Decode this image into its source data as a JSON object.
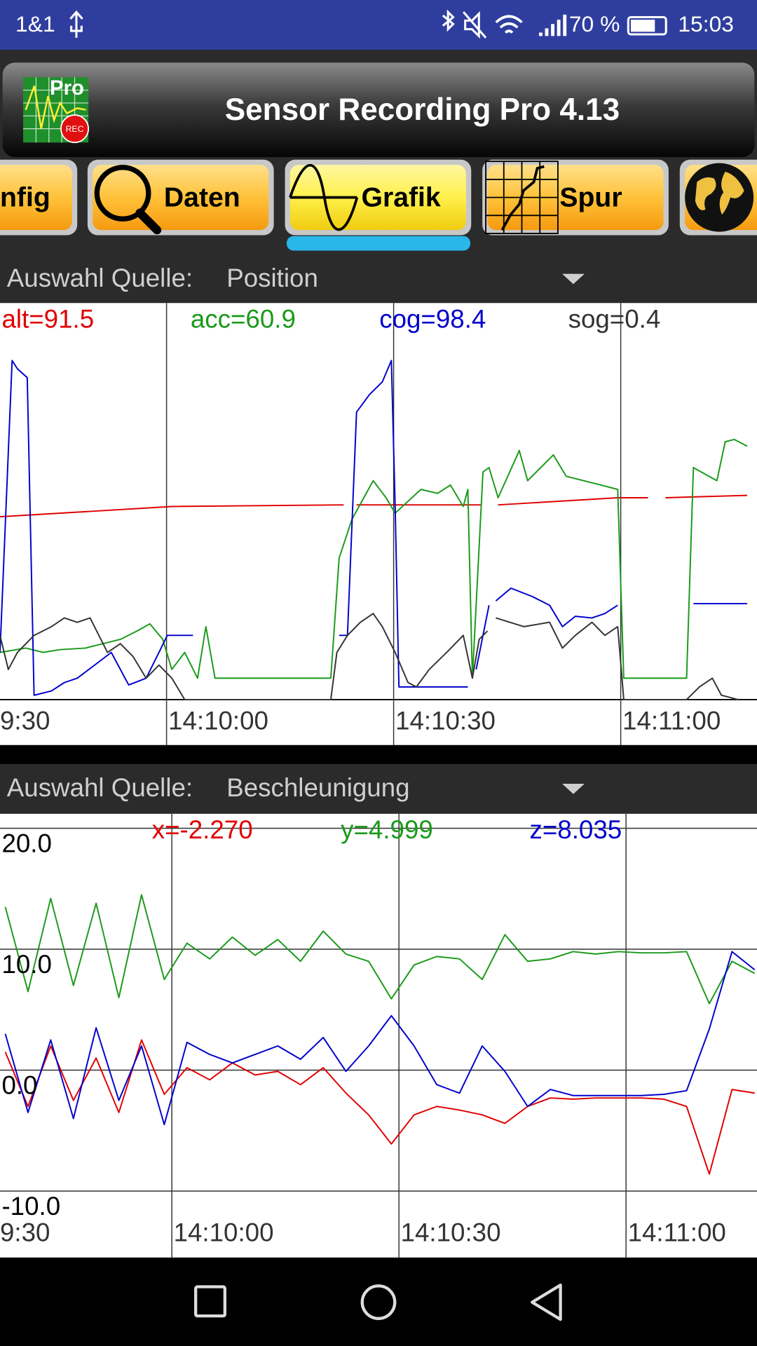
{
  "status_bar": {
    "carrier": "1&1",
    "battery": "70 %",
    "time": "15:03"
  },
  "header": {
    "title": "Sensor Recording Pro 4.13",
    "logo_text": "Pro",
    "logo_badge": "REC"
  },
  "tabs": [
    "nfig",
    "Daten",
    "Grafik",
    "Spur"
  ],
  "source_selectors": [
    {
      "label": "Auswahl Quelle:",
      "value": "Position"
    },
    {
      "label": "Auswahl Quelle:",
      "value": "Beschleunigung"
    }
  ],
  "chart_data": [
    {
      "type": "line",
      "xlim": [
        50978,
        51078
      ],
      "ylim": [
        0,
        100
      ],
      "xticks": [
        {
          "value": 50970,
          "label": "9:30"
        },
        {
          "value": 51000,
          "label": "14:10:00"
        },
        {
          "value": 51030,
          "label": "14:10:30"
        },
        {
          "value": 51060,
          "label": "14:11:00"
        }
      ],
      "grid": true,
      "series": [
        {
          "name": "alt=91.5",
          "color": "#e00000",
          "x": [
            50978,
            51000.7,
            51023.4,
            null,
            51025.1,
            51041.5,
            null,
            51043.8,
            51059.6,
            51063.6,
            null,
            51065.9,
            51076.7
          ],
          "values": [
            46.1,
            48.7,
            49.1,
            null,
            49.1,
            49.1,
            null,
            49.1,
            50.9,
            50.9,
            null,
            50.9,
            51.5
          ]
        },
        {
          "name": "acc=60.9",
          "color": "#1a9a1a",
          "x": [
            50978,
            50981.4,
            50983.7,
            50985.9,
            50989.3,
            50991.6,
            50993.9,
            50996.1,
            50997.8,
            50999.5,
            51000.7,
            51002.4,
            51004.1,
            51005.2,
            51006.4,
            51021.7,
            51022.8,
            51024.5,
            51027.3,
            51029,
            51030.2,
            51033.6,
            51035.8,
            51037.5,
            51039.2,
            51039.8,
            51040.4,
            51041.8,
            51042.6,
            51043.8,
            51046.6,
            51047.7,
            51051.1,
            51052.8,
            51057.4,
            51059.6,
            51060.4,
            51068.7,
            51069.6,
            51072.7,
            51073.8,
            51075,
            51076.7
          ],
          "values": [
            11.9,
            13.0,
            11.9,
            12.6,
            13.0,
            14.1,
            15.2,
            17.3,
            19.1,
            15.2,
            7.6,
            11.9,
            5.4,
            18.4,
            5.4,
            5.4,
            35.7,
            45.5,
            55.2,
            50.9,
            47.0,
            53.0,
            52.0,
            54.1,
            48.7,
            53.0,
            5.4,
            57.4,
            58.5,
            50.9,
            62.8,
            55.2,
            61.7,
            56.3,
            54.1,
            53.0,
            5.4,
            5.4,
            58.5,
            55.2,
            65.0,
            65.6,
            63.9
          ]
        },
        {
          "name": "cog=98.4",
          "color": "#0000cc",
          "x": [
            50978,
            50979.6,
            50980.3,
            50981.6,
            50982.5,
            50984.8,
            50986.5,
            50988.2,
            50990.5,
            50992.7,
            50995,
            50997.3,
            50999,
            51000.1,
            51003.5,
            null,
            51022.8,
            51023.9,
            51025.1,
            51026.8,
            51028.5,
            51029.7,
            51030.2,
            51030.7,
            51039.8,
            null,
            51040.9,
            51042.6,
            null,
            51043.5,
            51045.5,
            51048.3,
            51050.6,
            51052.3,
            51054,
            51056.2,
            51057.9,
            51059.6,
            null,
            51069.6,
            51076.7
          ],
          "values": [
            11.9,
            85.5,
            83.4,
            81.2,
            1.1,
            2.2,
            4.3,
            5.4,
            8.7,
            11.9,
            3.7,
            5.4,
            11.9,
            16.2,
            16.2,
            null,
            16.2,
            16.2,
            72.5,
            76.9,
            80.1,
            85.5,
            48.7,
            3.2,
            3.2,
            null,
            7.6,
            23.8,
            null,
            24.9,
            28.1,
            26.0,
            23.8,
            18.4,
            21.0,
            20.6,
            21.7,
            23.8,
            null,
            24.2,
            24.2
          ]
        },
        {
          "name": "sog=0.4",
          "color": "#333333",
          "x": [
            50978,
            50979.1,
            50980.3,
            50982.5,
            50984.8,
            50986.5,
            50988.2,
            50989.9,
            50992.2,
            50993.9,
            50995.6,
            50997.3,
            50999,
            51000.7,
            51002.4,
            51021.7,
            51022.5,
            51023.9,
            51025.6,
            51027.3,
            51028.5,
            51030.2,
            51031.9,
            51033,
            51034.7,
            51037,
            51039.2,
            51040.4,
            51041.3,
            51042.4,
            null,
            51043.5,
            51047.2,
            51050.6,
            51052.3,
            51054,
            51056.2,
            51057.9,
            51059.6,
            51060.4,
            51068.7,
            51070.4,
            51072.1,
            51073.3,
            51075.5
          ],
          "values": [
            16.2,
            7.6,
            11.9,
            16.2,
            18.4,
            20.6,
            19.5,
            20.6,
            11.9,
            14.1,
            10.8,
            5.4,
            8.7,
            5.4,
            0,
            0,
            11.9,
            16.2,
            19.5,
            21.7,
            18.4,
            11.9,
            4.3,
            3.2,
            7.6,
            11.9,
            16.2,
            5.4,
            15.2,
            17.3,
            null,
            20.6,
            18.4,
            19.5,
            13.0,
            16.2,
            19.5,
            16.2,
            18.4,
            0,
            0,
            3.2,
            5.4,
            1.1,
            0
          ]
        }
      ]
    },
    {
      "type": "line",
      "xlim": [
        50977.3,
        51077.3
      ],
      "ylim": [
        -15.5,
        21.2
      ],
      "xticks": [
        {
          "value": 50970,
          "label": "9:30"
        },
        {
          "value": 51000,
          "label": "14:10:00"
        },
        {
          "value": 51030,
          "label": "14:10:30"
        },
        {
          "value": 51060,
          "label": "14:11:00"
        }
      ],
      "yticks": [
        {
          "value": 20,
          "label": "20.0"
        },
        {
          "value": 10,
          "label": "10.0"
        },
        {
          "value": 0,
          "label": "0.0"
        },
        {
          "value": -10,
          "label": "-10.0"
        }
      ],
      "grid": true,
      "x": [
        50978,
        50981,
        50984,
        50987,
        50990,
        50993,
        50996,
        50999,
        51002,
        51005,
        51008,
        51011,
        51014,
        51017,
        51020,
        51023,
        51026,
        51029,
        51032,
        51035,
        51038,
        51041,
        51044,
        51047,
        51050,
        51053,
        51056,
        51059,
        51062,
        51065,
        51068,
        51071,
        51074,
        51077
      ],
      "series": [
        {
          "name": "x=-2.270",
          "color": "#e00000",
          "values": [
            1.5,
            -3.0,
            2.0,
            -2.5,
            1.0,
            -3.5,
            2.5,
            -2.0,
            0.2,
            -0.8,
            0.6,
            -0.4,
            -0.1,
            -1.2,
            0.2,
            -1.9,
            -3.7,
            -6.1,
            -3.7,
            -3.0,
            -3.3,
            -3.7,
            -4.4,
            -3.0,
            -2.3,
            -2.4,
            -2.3,
            -2.3,
            -2.3,
            -2.4,
            -3.0,
            -8.6,
            -1.6,
            -1.9
          ]
        },
        {
          "name": "y=4.999",
          "color": "#1a9a1a",
          "values": [
            13.5,
            6.5,
            14.2,
            7.0,
            13.8,
            6.0,
            14.5,
            7.5,
            10.5,
            9.2,
            11.0,
            9.5,
            10.8,
            9.0,
            11.5,
            9.6,
            9.0,
            5.9,
            8.7,
            9.4,
            9.2,
            7.5,
            11.2,
            9.0,
            9.2,
            9.8,
            9.6,
            9.8,
            9.7,
            9.7,
            9.8,
            5.5,
            9.0,
            8.0
          ]
        },
        {
          "name": "z=8.035",
          "color": "#0000cc",
          "values": [
            3.0,
            -3.5,
            2.5,
            -4.0,
            3.5,
            -2.5,
            2.0,
            -4.5,
            2.3,
            1.3,
            0.6,
            1.3,
            2.0,
            0.9,
            2.7,
            -0.1,
            2.0,
            4.5,
            2.0,
            -1.2,
            -1.9,
            2.0,
            -0.1,
            -3.0,
            -1.6,
            -2.1,
            -2.1,
            -2.1,
            -2.1,
            -2.0,
            -1.7,
            3.4,
            9.8,
            8.3
          ]
        }
      ]
    }
  ]
}
